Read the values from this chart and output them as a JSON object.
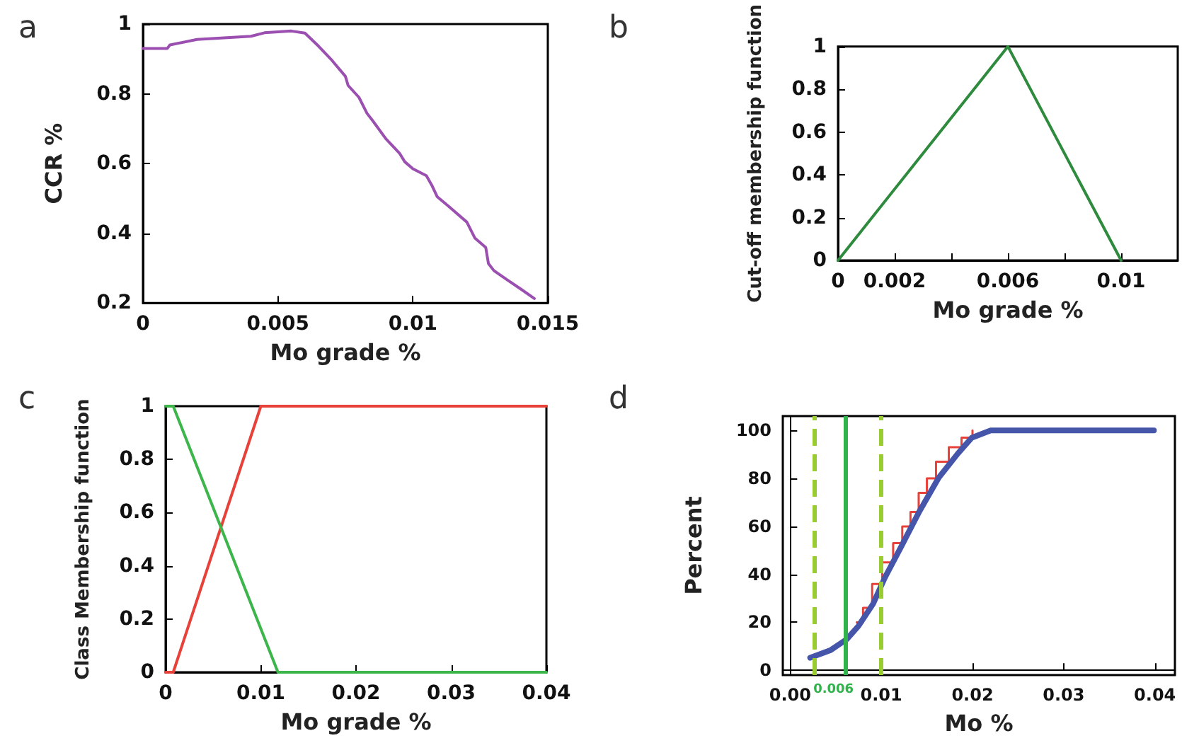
{
  "chart_data": [
    {
      "type": "line",
      "title": "a",
      "xlabel": "Mo grade %",
      "ylabel": "CCR %",
      "xlim": [
        0,
        0.015
      ],
      "xticks": [
        0,
        0.005,
        0.01,
        0.015
      ],
      "ylim": [
        0.2,
        1
      ],
      "yticks": [
        0.2,
        0.4,
        0.6,
        0.8,
        1
      ],
      "marker": "none",
      "series": [
        {
          "color": "#9b4fb0",
          "x": [
            0,
            0.0009,
            0.001,
            0.002,
            0.004,
            0.0045,
            0.0055,
            0.006,
            0.0065,
            0.007,
            0.0075,
            0.0076,
            0.008,
            0.0083,
            0.0085,
            0.009,
            0.0095,
            0.0097,
            0.01,
            0.0105,
            0.0107,
            0.0109,
            0.0113,
            0.012,
            0.0123,
            0.0127,
            0.0128,
            0.013,
            0.0135,
            0.014,
            0.0145
          ],
          "values": [
            0.93,
            0.93,
            0.94,
            0.956,
            0.965,
            0.975,
            0.98,
            0.974,
            0.937,
            0.896,
            0.85,
            0.824,
            0.79,
            0.744,
            0.724,
            0.671,
            0.63,
            0.605,
            0.585,
            0.565,
            0.538,
            0.505,
            0.479,
            0.432,
            0.386,
            0.359,
            0.313,
            0.293,
            0.266,
            0.24,
            0.213
          ]
        }
      ]
    },
    {
      "type": "line",
      "title": "b",
      "xlabel": "Mo grade %",
      "ylabel": "Cut-off membership function",
      "xlim": [
        0,
        0.012
      ],
      "xticks": [
        0,
        0.002,
        {
          "value": 0.004,
          "label": null
        },
        0.006,
        {
          "value": 0.008,
          "label": null
        },
        0.01
      ],
      "ylim": [
        0,
        1
      ],
      "yticks": [
        0,
        0.2,
        0.4,
        0.6,
        0.8,
        1
      ],
      "marker": "none",
      "series": [
        {
          "color": "#2e8b3e",
          "x": [
            0,
            0.006,
            0.01
          ],
          "values": [
            0,
            1,
            0
          ]
        }
      ]
    },
    {
      "type": "line",
      "title": "c",
      "xlabel": "Mo grade %",
      "ylabel": "Class Membership function",
      "xlim": [
        0,
        0.04
      ],
      "xticks": [
        0,
        0.01,
        0.02,
        0.03,
        0.04
      ],
      "ylim": [
        0,
        1
      ],
      "yticks": [
        0,
        0.2,
        0.4,
        0.6,
        0.8,
        1
      ],
      "marker": "none",
      "series": [
        {
          "color": "#e8413a",
          "x": [
            0,
            0.0008,
            0.01,
            0.04
          ],
          "values": [
            0,
            0,
            1,
            1
          ]
        },
        {
          "color": "#3cb54a",
          "x": [
            0,
            0.0008,
            0.0118,
            0.04
          ],
          "values": [
            1,
            1,
            0,
            0
          ]
        }
      ]
    },
    {
      "type": "line",
      "title": "d",
      "xlabel": "Mo %",
      "ylabel": "Percent",
      "xlim": [
        -0.0008,
        0.0422
      ],
      "xticks": [
        {
          "value": 0,
          "label": "0.00"
        },
        {
          "value": 0.01,
          "label": "0.01"
        },
        {
          "value": 0.02,
          "label": "0.02"
        },
        {
          "value": 0.03,
          "label": "0.03"
        },
        {
          "value": 0.04,
          "label": "0.04"
        }
      ],
      "ylim": [
        -2,
        106
      ],
      "yticks": [
        0,
        20,
        40,
        60,
        80,
        100
      ],
      "marker": "none",
      "ref_lines": [
        {
          "axis": "x",
          "value": 0.0026,
          "color": "#99cc33",
          "line_style": "dashed"
        },
        {
          "axis": "x",
          "value": 0.006,
          "label": "0.006",
          "color": "#2fb34a",
          "line_style": "solid"
        },
        {
          "axis": "x",
          "value": 0.01,
          "color": "#99cc33",
          "line_style": "dashed"
        }
      ],
      "series": [
        {
          "type": "step",
          "color": "#e8413a",
          "x": [
            0.0073,
            0.008,
            0.009,
            0.0101,
            0.0113,
            0.0123,
            0.0132,
            0.0141,
            0.015,
            0.016,
            0.0174,
            0.0188,
            0.02
          ],
          "values": [
            20,
            26,
            36,
            45,
            53,
            60,
            66,
            74,
            80,
            87,
            93,
            97,
            100
          ]
        },
        {
          "type": "line",
          "color": "#4455aa",
          "x": [
            0.0022,
            0.0044,
            0.0062,
            0.0075,
            0.0091,
            0.0104,
            0.0122,
            0.0142,
            0.0163,
            0.0184,
            0.0199,
            0.022,
            0.0399
          ],
          "values": [
            5.2,
            8.3,
            12.9,
            18.5,
            27.7,
            38.7,
            51.7,
            66.4,
            80.3,
            90.4,
            96.9,
            100,
            100
          ]
        }
      ]
    }
  ]
}
